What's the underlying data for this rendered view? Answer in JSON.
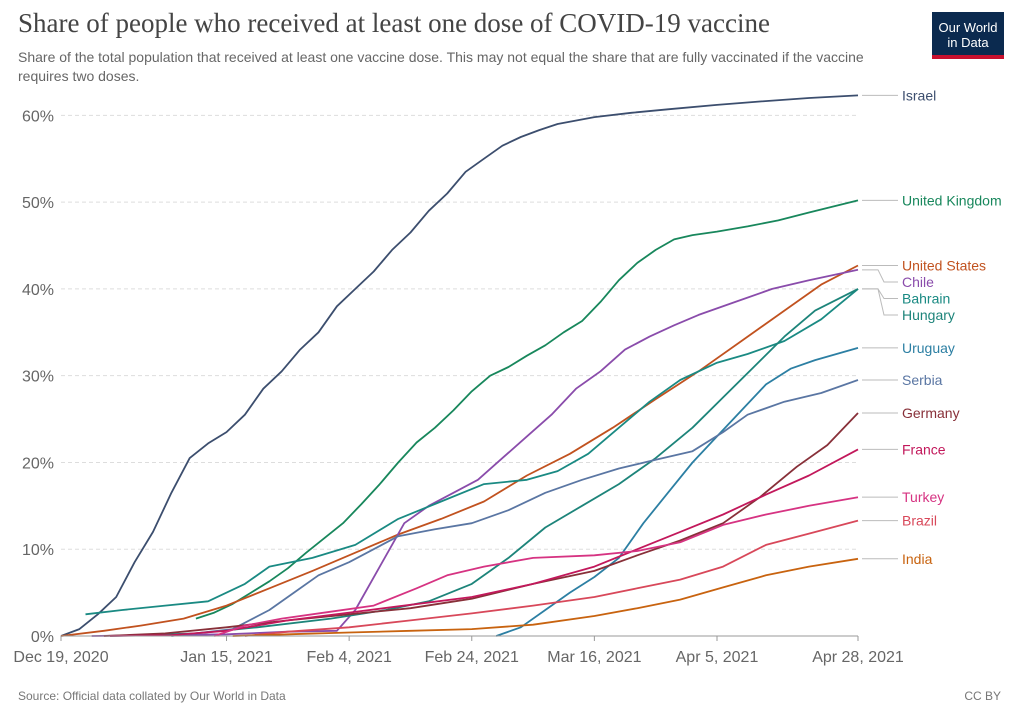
{
  "header": {
    "title": "Share of people who received at least one dose of COVID-19 vaccine",
    "subtitle": "Share of the total population that received at least one vaccine dose. This may not equal the share that are fully vaccinated if the vaccine requires two doses.",
    "logo_line1": "Our World",
    "logo_line2": "in Data"
  },
  "footer": {
    "source": "Source: Official data collated by Our World in Data",
    "license": "CC BY"
  },
  "chart_data": {
    "type": "line",
    "x_type": "date",
    "xlim": [
      "2020-12-19",
      "2021-04-28"
    ],
    "ylim": [
      0,
      62
    ],
    "y_unit": "%",
    "grid": "horizontal dashed",
    "legend_placement": "right end labels",
    "x_ticks": [
      "2020-12-19",
      "2021-01-15",
      "2021-02-04",
      "2021-02-24",
      "2021-03-16",
      "2021-04-05",
      "2021-04-28"
    ],
    "x_tick_labels": [
      "Dec 19, 2020",
      "Jan 15, 2021",
      "Feb 4, 2021",
      "Feb 24, 2021",
      "Mar 16, 2021",
      "Apr 5, 2021",
      "Apr 28, 2021"
    ],
    "y_ticks": [
      0,
      10,
      20,
      30,
      40,
      50,
      60
    ],
    "y_tick_labels": [
      "0%",
      "10%",
      "20%",
      "30%",
      "40%",
      "50%",
      "60%"
    ],
    "series": [
      {
        "name": "Israel",
        "color": "#3c4e6e",
        "points": [
          [
            "2020-12-19",
            0
          ],
          [
            "2020-12-22",
            0.8
          ],
          [
            "2020-12-25",
            2.5
          ],
          [
            "2020-12-28",
            4.5
          ],
          [
            "2020-12-31",
            8.5
          ],
          [
            "2021-01-03",
            12
          ],
          [
            "2021-01-06",
            16.5
          ],
          [
            "2021-01-09",
            20.5
          ],
          [
            "2021-01-12",
            22.2
          ],
          [
            "2021-01-15",
            23.5
          ],
          [
            "2021-01-18",
            25.5
          ],
          [
            "2021-01-21",
            28.5
          ],
          [
            "2021-01-24",
            30.5
          ],
          [
            "2021-01-27",
            33
          ],
          [
            "2021-01-30",
            35
          ],
          [
            "2021-02-02",
            38
          ],
          [
            "2021-02-05",
            40
          ],
          [
            "2021-02-08",
            42
          ],
          [
            "2021-02-11",
            44.5
          ],
          [
            "2021-02-14",
            46.5
          ],
          [
            "2021-02-17",
            49
          ],
          [
            "2021-02-20",
            51
          ],
          [
            "2021-02-23",
            53.5
          ],
          [
            "2021-02-26",
            55
          ],
          [
            "2021-03-01",
            56.5
          ],
          [
            "2021-03-04",
            57.5
          ],
          [
            "2021-03-07",
            58.3
          ],
          [
            "2021-03-10",
            59
          ],
          [
            "2021-03-16",
            59.8
          ],
          [
            "2021-03-22",
            60.3
          ],
          [
            "2021-03-28",
            60.7
          ],
          [
            "2021-04-05",
            61.2
          ],
          [
            "2021-04-12",
            61.6
          ],
          [
            "2021-04-20",
            62
          ],
          [
            "2021-04-28",
            62.3
          ]
        ]
      },
      {
        "name": "United Kingdom",
        "color": "#18875c",
        "points": [
          [
            "2021-01-10",
            2
          ],
          [
            "2021-01-13",
            2.7
          ],
          [
            "2021-01-16",
            3.7
          ],
          [
            "2021-01-19",
            5
          ],
          [
            "2021-01-22",
            6.3
          ],
          [
            "2021-01-25",
            7.8
          ],
          [
            "2021-01-28",
            9.6
          ],
          [
            "2021-01-31",
            11.3
          ],
          [
            "2021-02-03",
            13
          ],
          [
            "2021-02-06",
            15.2
          ],
          [
            "2021-02-09",
            17.5
          ],
          [
            "2021-02-12",
            20
          ],
          [
            "2021-02-15",
            22.3
          ],
          [
            "2021-02-18",
            24
          ],
          [
            "2021-02-21",
            26
          ],
          [
            "2021-02-24",
            28.2
          ],
          [
            "2021-02-27",
            30
          ],
          [
            "2021-03-02",
            31
          ],
          [
            "2021-03-05",
            32.3
          ],
          [
            "2021-03-08",
            33.5
          ],
          [
            "2021-03-11",
            35
          ],
          [
            "2021-03-14",
            36.3
          ],
          [
            "2021-03-17",
            38.5
          ],
          [
            "2021-03-20",
            41
          ],
          [
            "2021-03-23",
            43
          ],
          [
            "2021-03-26",
            44.5
          ],
          [
            "2021-03-29",
            45.7
          ],
          [
            "2021-04-01",
            46.2
          ],
          [
            "2021-04-05",
            46.6
          ],
          [
            "2021-04-10",
            47.2
          ],
          [
            "2021-04-15",
            47.9
          ],
          [
            "2021-04-20",
            48.8
          ],
          [
            "2021-04-28",
            50.2
          ]
        ]
      },
      {
        "name": "United States",
        "color": "#c1521f",
        "points": [
          [
            "2020-12-19",
            0
          ],
          [
            "2020-12-26",
            0.6
          ],
          [
            "2021-01-01",
            1.2
          ],
          [
            "2021-01-08",
            2
          ],
          [
            "2021-01-15",
            3.5
          ],
          [
            "2021-01-22",
            5.5
          ],
          [
            "2021-01-29",
            7.5
          ],
          [
            "2021-02-05",
            9.6
          ],
          [
            "2021-02-12",
            11.7
          ],
          [
            "2021-02-19",
            13.5
          ],
          [
            "2021-02-26",
            15.5
          ],
          [
            "2021-03-05",
            18.5
          ],
          [
            "2021-03-12",
            21
          ],
          [
            "2021-03-19",
            24
          ],
          [
            "2021-03-26",
            27.3
          ],
          [
            "2021-04-02",
            30.5
          ],
          [
            "2021-04-09",
            34
          ],
          [
            "2021-04-16",
            37.5
          ],
          [
            "2021-04-22",
            40.5
          ],
          [
            "2021-04-28",
            42.7
          ]
        ]
      },
      {
        "name": "Chile",
        "color": "#8a4cab",
        "points": [
          [
            "2020-12-24",
            0
          ],
          [
            "2021-01-15",
            0.2
          ],
          [
            "2021-01-25",
            0.5
          ],
          [
            "2021-02-02",
            0.6
          ],
          [
            "2021-02-05",
            3
          ],
          [
            "2021-02-09",
            8
          ],
          [
            "2021-02-13",
            13
          ],
          [
            "2021-02-17",
            15
          ],
          [
            "2021-02-21",
            16.5
          ],
          [
            "2021-02-25",
            18
          ],
          [
            "2021-03-01",
            20.5
          ],
          [
            "2021-03-05",
            23
          ],
          [
            "2021-03-09",
            25.5
          ],
          [
            "2021-03-13",
            28.5
          ],
          [
            "2021-03-17",
            30.5
          ],
          [
            "2021-03-21",
            33
          ],
          [
            "2021-03-25",
            34.5
          ],
          [
            "2021-03-29",
            35.8
          ],
          [
            "2021-04-02",
            37
          ],
          [
            "2021-04-08",
            38.5
          ],
          [
            "2021-04-14",
            40
          ],
          [
            "2021-04-20",
            41
          ],
          [
            "2021-04-28",
            42.2
          ]
        ]
      },
      {
        "name": "Bahrain",
        "color": "#1a8a83",
        "points": [
          [
            "2020-12-23",
            2.5
          ],
          [
            "2020-12-29",
            3
          ],
          [
            "2021-01-05",
            3.5
          ],
          [
            "2021-01-12",
            4
          ],
          [
            "2021-01-18",
            6
          ],
          [
            "2021-01-22",
            8
          ],
          [
            "2021-01-29",
            9
          ],
          [
            "2021-02-05",
            10.5
          ],
          [
            "2021-02-12",
            13.5
          ],
          [
            "2021-02-19",
            15.5
          ],
          [
            "2021-02-26",
            17.5
          ],
          [
            "2021-03-05",
            18
          ],
          [
            "2021-03-10",
            19
          ],
          [
            "2021-03-15",
            21
          ],
          [
            "2021-03-20",
            24
          ],
          [
            "2021-03-25",
            27
          ],
          [
            "2021-03-30",
            29.5
          ],
          [
            "2021-04-05",
            31.5
          ],
          [
            "2021-04-10",
            32.5
          ],
          [
            "2021-04-16",
            34
          ],
          [
            "2021-04-22",
            36.5
          ],
          [
            "2021-04-28",
            40
          ]
        ]
      },
      {
        "name": "Hungary",
        "color": "#1d847a",
        "points": [
          [
            "2020-12-27",
            0
          ],
          [
            "2021-01-10",
            0.3
          ],
          [
            "2021-01-20",
            1
          ],
          [
            "2021-02-01",
            2
          ],
          [
            "2021-02-10",
            3
          ],
          [
            "2021-02-17",
            4
          ],
          [
            "2021-02-24",
            6
          ],
          [
            "2021-03-02",
            9
          ],
          [
            "2021-03-08",
            12.5
          ],
          [
            "2021-03-14",
            15
          ],
          [
            "2021-03-20",
            17.5
          ],
          [
            "2021-03-26",
            20.5
          ],
          [
            "2021-04-01",
            24
          ],
          [
            "2021-04-06",
            27.5
          ],
          [
            "2021-04-11",
            31
          ],
          [
            "2021-04-16",
            34.5
          ],
          [
            "2021-04-21",
            37.5
          ],
          [
            "2021-04-28",
            40
          ]
        ]
      },
      {
        "name": "Uruguay",
        "color": "#2c7fa3",
        "points": [
          [
            "2021-02-28",
            0
          ],
          [
            "2021-03-04",
            1
          ],
          [
            "2021-03-08",
            3
          ],
          [
            "2021-03-12",
            5
          ],
          [
            "2021-03-16",
            6.8
          ],
          [
            "2021-03-20",
            9
          ],
          [
            "2021-03-24",
            13
          ],
          [
            "2021-03-28",
            16.5
          ],
          [
            "2021-04-01",
            20
          ],
          [
            "2021-04-05",
            23
          ],
          [
            "2021-04-09",
            26
          ],
          [
            "2021-04-13",
            29
          ],
          [
            "2021-04-17",
            30.8
          ],
          [
            "2021-04-21",
            31.8
          ],
          [
            "2021-04-28",
            33.2
          ]
        ]
      },
      {
        "name": "Serbia",
        "color": "#5a76a3",
        "points": [
          [
            "2021-01-06",
            0
          ],
          [
            "2021-01-16",
            0.8
          ],
          [
            "2021-01-22",
            3
          ],
          [
            "2021-01-26",
            5
          ],
          [
            "2021-01-30",
            7
          ],
          [
            "2021-02-04",
            8.5
          ],
          [
            "2021-02-08",
            10
          ],
          [
            "2021-02-12",
            11.5
          ],
          [
            "2021-02-18",
            12.3
          ],
          [
            "2021-02-24",
            13
          ],
          [
            "2021-03-02",
            14.5
          ],
          [
            "2021-03-08",
            16.5
          ],
          [
            "2021-03-14",
            18
          ],
          [
            "2021-03-20",
            19.3
          ],
          [
            "2021-03-26",
            20.3
          ],
          [
            "2021-04-01",
            21.3
          ],
          [
            "2021-04-06",
            23.5
          ],
          [
            "2021-04-10",
            25.5
          ],
          [
            "2021-04-16",
            27
          ],
          [
            "2021-04-22",
            28
          ],
          [
            "2021-04-28",
            29.5
          ]
        ]
      },
      {
        "name": "Germany",
        "color": "#883039",
        "points": [
          [
            "2020-12-26",
            0
          ],
          [
            "2021-01-05",
            0.3
          ],
          [
            "2021-01-15",
            1
          ],
          [
            "2021-01-25",
            1.8
          ],
          [
            "2021-02-04",
            2.5
          ],
          [
            "2021-02-14",
            3.2
          ],
          [
            "2021-02-24",
            4.3
          ],
          [
            "2021-03-06",
            6
          ],
          [
            "2021-03-16",
            7.5
          ],
          [
            "2021-03-23",
            9.3
          ],
          [
            "2021-03-30",
            11
          ],
          [
            "2021-04-06",
            13
          ],
          [
            "2021-04-12",
            16
          ],
          [
            "2021-04-18",
            19.5
          ],
          [
            "2021-04-23",
            22
          ],
          [
            "2021-04-28",
            25.7
          ]
        ]
      },
      {
        "name": "France",
        "color": "#c2185b",
        "points": [
          [
            "2020-12-27",
            0
          ],
          [
            "2021-01-06",
            0.1
          ],
          [
            "2021-01-15",
            0.6
          ],
          [
            "2021-01-25",
            1.8
          ],
          [
            "2021-02-04",
            2.7
          ],
          [
            "2021-02-14",
            3.6
          ],
          [
            "2021-02-24",
            4.5
          ],
          [
            "2021-03-06",
            6
          ],
          [
            "2021-03-16",
            8
          ],
          [
            "2021-03-23",
            10
          ],
          [
            "2021-03-30",
            12
          ],
          [
            "2021-04-06",
            14
          ],
          [
            "2021-04-13",
            16.3
          ],
          [
            "2021-04-20",
            18.5
          ],
          [
            "2021-04-28",
            21.5
          ]
        ]
      },
      {
        "name": "Turkey",
        "color": "#d63382",
        "points": [
          [
            "2021-01-13",
            0
          ],
          [
            "2021-01-18",
            1.2
          ],
          [
            "2021-01-24",
            2
          ],
          [
            "2021-02-01",
            2.8
          ],
          [
            "2021-02-08",
            3.5
          ],
          [
            "2021-02-15",
            5.5
          ],
          [
            "2021-02-20",
            7
          ],
          [
            "2021-02-26",
            8
          ],
          [
            "2021-03-06",
            9
          ],
          [
            "2021-03-16",
            9.3
          ],
          [
            "2021-03-23",
            9.8
          ],
          [
            "2021-03-30",
            10.8
          ],
          [
            "2021-04-06",
            12.8
          ],
          [
            "2021-04-13",
            14
          ],
          [
            "2021-04-20",
            15
          ],
          [
            "2021-04-28",
            16
          ]
        ]
      },
      {
        "name": "Brazil",
        "color": "#d8485a",
        "points": [
          [
            "2021-01-18",
            0
          ],
          [
            "2021-01-25",
            0.5
          ],
          [
            "2021-02-04",
            1
          ],
          [
            "2021-02-14",
            1.8
          ],
          [
            "2021-02-24",
            2.6
          ],
          [
            "2021-03-06",
            3.5
          ],
          [
            "2021-03-16",
            4.5
          ],
          [
            "2021-03-23",
            5.5
          ],
          [
            "2021-03-30",
            6.5
          ],
          [
            "2021-04-06",
            8
          ],
          [
            "2021-04-13",
            10.5
          ],
          [
            "2021-04-20",
            11.8
          ],
          [
            "2021-04-28",
            13.3
          ]
        ]
      },
      {
        "name": "India",
        "color": "#c8630f",
        "points": [
          [
            "2021-01-16",
            0
          ],
          [
            "2021-01-25",
            0.2
          ],
          [
            "2021-02-04",
            0.4
          ],
          [
            "2021-02-14",
            0.6
          ],
          [
            "2021-02-24",
            0.8
          ],
          [
            "2021-03-06",
            1.3
          ],
          [
            "2021-03-16",
            2.3
          ],
          [
            "2021-03-23",
            3.2
          ],
          [
            "2021-03-30",
            4.2
          ],
          [
            "2021-04-06",
            5.6
          ],
          [
            "2021-04-13",
            7
          ],
          [
            "2021-04-20",
            8
          ],
          [
            "2021-04-28",
            8.9
          ]
        ]
      }
    ]
  }
}
